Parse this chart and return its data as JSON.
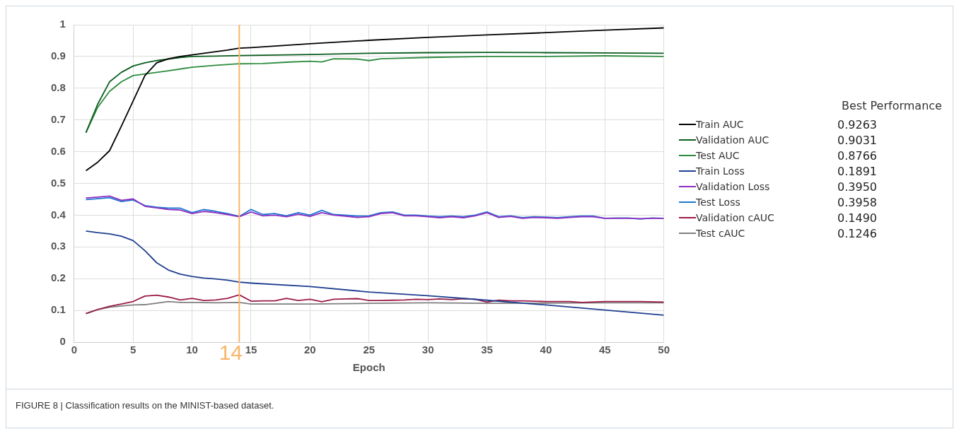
{
  "chart_data": {
    "type": "line",
    "xlabel": "Epoch",
    "legend_title": "Best Performance",
    "legend": "right",
    "grid": true,
    "marker": "none",
    "line_style": "solid",
    "xlim": [
      0,
      50
    ],
    "xticks": [
      0,
      5,
      10,
      15,
      20,
      25,
      30,
      35,
      40,
      45,
      50
    ],
    "ylim": [
      0,
      1
    ],
    "yticks": [
      0,
      0.1,
      0.2,
      0.3,
      0.4,
      0.5,
      0.6,
      0.7,
      0.8,
      0.9,
      1
    ],
    "ref_lines": [
      {
        "axis": "x",
        "value": 14,
        "label": "14",
        "color": "#f9b56a"
      }
    ],
    "series": [
      {
        "name": "Train AUC",
        "color": "#000000",
        "x": [
          1,
          2,
          3,
          4,
          5,
          6,
          7,
          8,
          9,
          10,
          11,
          12,
          13,
          14,
          15,
          20,
          25,
          30,
          35,
          40,
          45,
          50
        ],
        "values": [
          0.54,
          0.567,
          0.603,
          0.68,
          0.76,
          0.84,
          0.88,
          0.893,
          0.9,
          0.905,
          0.91,
          0.915,
          0.92,
          0.926,
          0.928,
          0.94,
          0.951,
          0.96,
          0.968,
          0.975,
          0.983,
          0.99
        ]
      },
      {
        "name": "Validation AUC",
        "color": "#0b5d1e",
        "x": [
          1,
          2,
          3,
          4,
          5,
          6,
          7,
          8,
          9,
          10,
          12,
          14,
          20,
          25,
          30,
          35,
          40,
          45,
          50
        ],
        "values": [
          0.66,
          0.75,
          0.82,
          0.85,
          0.87,
          0.88,
          0.887,
          0.892,
          0.897,
          0.9,
          0.901,
          0.903,
          0.906,
          0.91,
          0.912,
          0.913,
          0.912,
          0.911,
          0.91
        ]
      },
      {
        "name": "Test AUC",
        "color": "#2e8b3e",
        "x": [
          1,
          2,
          3,
          4,
          5,
          6,
          8,
          10,
          12,
          14,
          16,
          18,
          20,
          21,
          22,
          24,
          25,
          26,
          30,
          35,
          40,
          45,
          50
        ],
        "values": [
          0.66,
          0.74,
          0.79,
          0.82,
          0.84,
          0.845,
          0.855,
          0.866,
          0.872,
          0.877,
          0.878,
          0.882,
          0.885,
          0.883,
          0.893,
          0.892,
          0.887,
          0.893,
          0.897,
          0.9,
          0.9,
          0.902,
          0.9
        ]
      },
      {
        "name": "Train Loss",
        "color": "#1f3f8f",
        "x": [
          1,
          2,
          3,
          4,
          5,
          6,
          7,
          8,
          9,
          10,
          11,
          12,
          13,
          14,
          15,
          20,
          25,
          30,
          35,
          40,
          45,
          50
        ],
        "values": [
          0.35,
          0.345,
          0.341,
          0.334,
          0.32,
          0.288,
          0.25,
          0.227,
          0.214,
          0.207,
          0.202,
          0.199,
          0.195,
          0.189,
          0.186,
          0.175,
          0.158,
          0.146,
          0.132,
          0.117,
          0.101,
          0.085
        ]
      },
      {
        "name": "Validation Loss",
        "color": "#8e2fc0",
        "x": [
          1,
          2,
          3,
          4,
          5,
          6,
          7,
          8,
          9,
          10,
          11,
          12,
          13,
          14,
          15,
          16,
          17,
          18,
          19,
          20,
          21,
          22,
          23,
          24,
          25,
          26,
          27,
          28,
          29,
          30,
          31,
          32,
          33,
          34,
          35,
          36,
          37,
          38,
          39,
          40,
          41,
          42,
          43,
          44,
          45,
          46,
          47,
          48,
          49,
          50
        ],
        "values": [
          0.454,
          0.457,
          0.46,
          0.447,
          0.451,
          0.428,
          0.423,
          0.418,
          0.416,
          0.405,
          0.412,
          0.408,
          0.402,
          0.395,
          0.41,
          0.398,
          0.4,
          0.395,
          0.403,
          0.396,
          0.408,
          0.4,
          0.397,
          0.393,
          0.395,
          0.405,
          0.408,
          0.398,
          0.398,
          0.395,
          0.392,
          0.395,
          0.392,
          0.398,
          0.408,
          0.393,
          0.396,
          0.39,
          0.393,
          0.392,
          0.39,
          0.393,
          0.395,
          0.395,
          0.39,
          0.39,
          0.39,
          0.389,
          0.39,
          0.39
        ]
      },
      {
        "name": "Test Loss",
        "color": "#1f77d4",
        "x": [
          1,
          2,
          3,
          4,
          5,
          6,
          7,
          8,
          9,
          10,
          11,
          12,
          13,
          14,
          15,
          16,
          17,
          18,
          19,
          20,
          21,
          22,
          23,
          24,
          25,
          26,
          27,
          28,
          29,
          30,
          31,
          32,
          33,
          34,
          35,
          36,
          37,
          38,
          39,
          40,
          41,
          42,
          43,
          44,
          45,
          46,
          47,
          48,
          49,
          50
        ],
        "values": [
          0.449,
          0.452,
          0.455,
          0.443,
          0.448,
          0.43,
          0.425,
          0.422,
          0.422,
          0.408,
          0.418,
          0.412,
          0.405,
          0.396,
          0.418,
          0.402,
          0.405,
          0.398,
          0.408,
          0.4,
          0.415,
          0.402,
          0.4,
          0.397,
          0.398,
          0.408,
          0.41,
          0.4,
          0.4,
          0.397,
          0.395,
          0.397,
          0.395,
          0.4,
          0.41,
          0.395,
          0.398,
          0.392,
          0.395,
          0.394,
          0.392,
          0.395,
          0.397,
          0.397,
          0.39,
          0.391,
          0.391,
          0.388,
          0.391,
          0.39
        ]
      },
      {
        "name": "Validation cAUC",
        "color": "#9b1b4b",
        "x": [
          1,
          2,
          3,
          4,
          5,
          6,
          7,
          8,
          9,
          10,
          11,
          12,
          13,
          14,
          15,
          16,
          17,
          18,
          19,
          20,
          21,
          22,
          23,
          24,
          25,
          26,
          27,
          28,
          29,
          30,
          31,
          32,
          33,
          34,
          35,
          36,
          37,
          38,
          40,
          42,
          43,
          45,
          48,
          50
        ],
        "values": [
          0.09,
          0.103,
          0.113,
          0.12,
          0.128,
          0.145,
          0.148,
          0.142,
          0.133,
          0.138,
          0.131,
          0.133,
          0.138,
          0.149,
          0.129,
          0.13,
          0.13,
          0.138,
          0.131,
          0.135,
          0.127,
          0.135,
          0.136,
          0.137,
          0.131,
          0.131,
          0.132,
          0.133,
          0.135,
          0.134,
          0.136,
          0.134,
          0.137,
          0.135,
          0.126,
          0.132,
          0.13,
          0.13,
          0.128,
          0.128,
          0.125,
          0.128,
          0.128,
          0.126
        ]
      },
      {
        "name": "Test cAUC",
        "color": "#7f7f7f",
        "x": [
          1,
          2,
          3,
          4,
          5,
          6,
          7,
          8,
          9,
          10,
          12,
          14,
          15,
          20,
          25,
          30,
          35,
          40,
          45,
          50
        ],
        "values": [
          0.09,
          0.102,
          0.11,
          0.114,
          0.117,
          0.118,
          0.123,
          0.128,
          0.125,
          0.125,
          0.124,
          0.125,
          0.12,
          0.12,
          0.122,
          0.124,
          0.122,
          0.123,
          0.124,
          0.124
        ]
      }
    ],
    "annotations": [
      "0.9263",
      "0.9031",
      "0.8766",
      "0.1891",
      "0.3950",
      "0.3958",
      "0.1490",
      "0.1246",
      "FIGURE 8 | Classification results on the MINIST-based dataset."
    ]
  }
}
